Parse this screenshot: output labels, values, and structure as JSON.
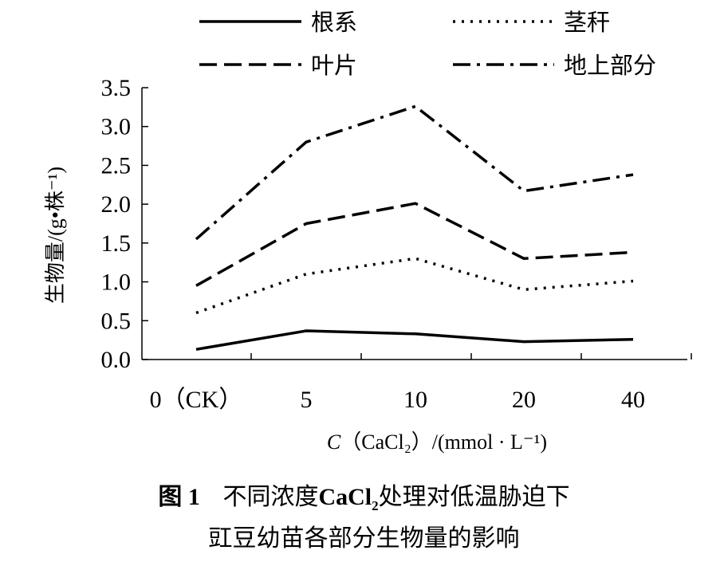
{
  "chart_data": {
    "type": "line",
    "categories": [
      "0（CK）",
      "5",
      "10",
      "20",
      "40"
    ],
    "series": [
      {
        "name": "根系",
        "values": [
          0.13,
          0.37,
          0.33,
          0.23,
          0.26
        ],
        "dash": "solid"
      },
      {
        "name": "茎秆",
        "values": [
          0.6,
          1.1,
          1.3,
          0.9,
          1.01
        ],
        "dash": "dot"
      },
      {
        "name": "叶片",
        "values": [
          0.95,
          1.75,
          2.01,
          1.3,
          1.38
        ],
        "dash": "dash"
      },
      {
        "name": "地上部分",
        "values": [
          1.55,
          2.8,
          3.26,
          2.17,
          2.38
        ],
        "dash": "dashdot"
      }
    ],
    "ylim": [
      0,
      3.5
    ],
    "yticks": [
      "0.0",
      "0.5",
      "1.0",
      "1.5",
      "2.0",
      "2.5",
      "3.0",
      "3.5"
    ],
    "ylabel": "生物量/(g•株⁻¹)",
    "xlabel": {
      "var": "C",
      "rest": "（CaCl₂）/(mmol · L⁻¹)"
    },
    "legend": "top",
    "grid": false
  },
  "caption": {
    "fig_no": "图 1",
    "line1_pre": "不同浓度",
    "chem_main": "CaCl",
    "chem_sub": "2",
    "line1_post": "处理对低温胁迫下",
    "line2": "豇豆幼苗各部分生物量的影响"
  }
}
